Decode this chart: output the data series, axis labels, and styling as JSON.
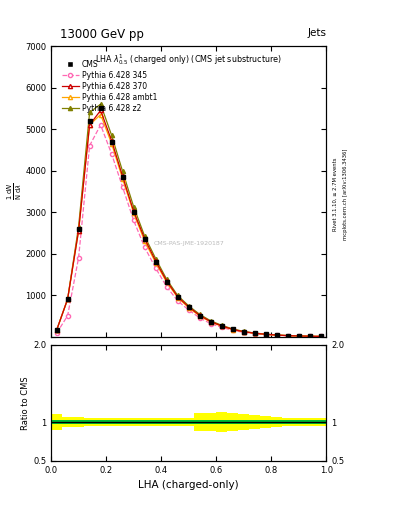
{
  "title": "13000 GeV pp",
  "title_right": "Jets",
  "plot_title": "LHA $\\lambda^{1}_{0.5}$ (charged only) (CMS jet substructure)",
  "xlabel": "LHA (charged-only)",
  "ylabel_ratio": "Ratio to CMS",
  "right_label_top": "Rivet 3.1.10, ≥ 2.7M events",
  "right_label_bot": "mcplots.cern.ch [arXiv:1306.3436]",
  "watermark": "CMS-PAS-JME-1920187",
  "xlim": [
    0,
    1
  ],
  "ylim_main": [
    0,
    7000
  ],
  "ylim_ratio": [
    0.5,
    2.0
  ],
  "x_data": [
    0.02,
    0.06,
    0.1,
    0.14,
    0.18,
    0.22,
    0.26,
    0.3,
    0.34,
    0.38,
    0.42,
    0.46,
    0.5,
    0.54,
    0.58,
    0.62,
    0.66,
    0.7,
    0.74,
    0.78,
    0.82,
    0.86,
    0.9,
    0.94,
    0.98
  ],
  "cms_y": [
    150,
    900,
    2600,
    5200,
    5500,
    4700,
    3850,
    3000,
    2350,
    1800,
    1320,
    950,
    700,
    500,
    355,
    250,
    170,
    115,
    78,
    52,
    34,
    21,
    13,
    6,
    2
  ],
  "py345_y": [
    80,
    500,
    1900,
    4600,
    5100,
    4400,
    3600,
    2800,
    2150,
    1650,
    1200,
    860,
    640,
    450,
    310,
    220,
    148,
    99,
    67,
    45,
    29,
    18,
    11,
    5,
    2
  ],
  "py370_y": [
    150,
    900,
    2550,
    5100,
    5450,
    4720,
    3860,
    3020,
    2360,
    1820,
    1340,
    960,
    715,
    510,
    360,
    255,
    173,
    116,
    79,
    53,
    35,
    21,
    13,
    6,
    2
  ],
  "pyambt1_y": [
    150,
    900,
    2550,
    5100,
    5350,
    4650,
    3800,
    2980,
    2300,
    1780,
    1310,
    940,
    695,
    495,
    350,
    248,
    168,
    112,
    76,
    51,
    33,
    21,
    13,
    6,
    2
  ],
  "pyz2_y": [
    150,
    900,
    2650,
    5400,
    5600,
    4850,
    3980,
    3130,
    2420,
    1880,
    1380,
    990,
    740,
    535,
    378,
    270,
    183,
    123,
    84,
    57,
    38,
    24,
    15,
    7,
    3
  ],
  "ratio_green_lo": [
    0.97,
    0.97,
    0.97,
    0.97,
    0.97,
    0.97,
    0.97,
    0.97,
    0.97,
    0.97,
    0.97,
    0.97,
    0.97,
    0.97,
    0.97,
    0.97,
    0.97,
    0.97,
    0.97,
    0.97,
    0.97,
    0.97,
    0.97,
    0.97,
    0.97
  ],
  "ratio_green_hi": [
    1.03,
    1.03,
    1.03,
    1.03,
    1.03,
    1.03,
    1.03,
    1.03,
    1.03,
    1.03,
    1.03,
    1.03,
    1.03,
    1.03,
    1.03,
    1.03,
    1.03,
    1.03,
    1.03,
    1.03,
    1.03,
    1.03,
    1.03,
    1.03,
    1.03
  ],
  "ratio_yellow_lo": [
    0.9,
    0.93,
    0.94,
    0.95,
    0.95,
    0.95,
    0.95,
    0.95,
    0.95,
    0.95,
    0.95,
    0.95,
    0.95,
    0.88,
    0.88,
    0.87,
    0.88,
    0.9,
    0.91,
    0.92,
    0.93,
    0.95,
    0.95,
    0.95,
    0.95
  ],
  "ratio_yellow_hi": [
    1.1,
    1.07,
    1.06,
    1.05,
    1.05,
    1.05,
    1.05,
    1.05,
    1.05,
    1.05,
    1.05,
    1.05,
    1.05,
    1.12,
    1.12,
    1.13,
    1.12,
    1.1,
    1.09,
    1.08,
    1.07,
    1.05,
    1.05,
    1.05,
    1.05
  ],
  "color_cms": "#000000",
  "color_345": "#ff69b4",
  "color_370": "#cc0000",
  "color_ambt1": "#ffa500",
  "color_z2": "#808000",
  "color_green": "#00bb33",
  "color_yellow": "#ffff00",
  "bg_color": "#ffffff"
}
